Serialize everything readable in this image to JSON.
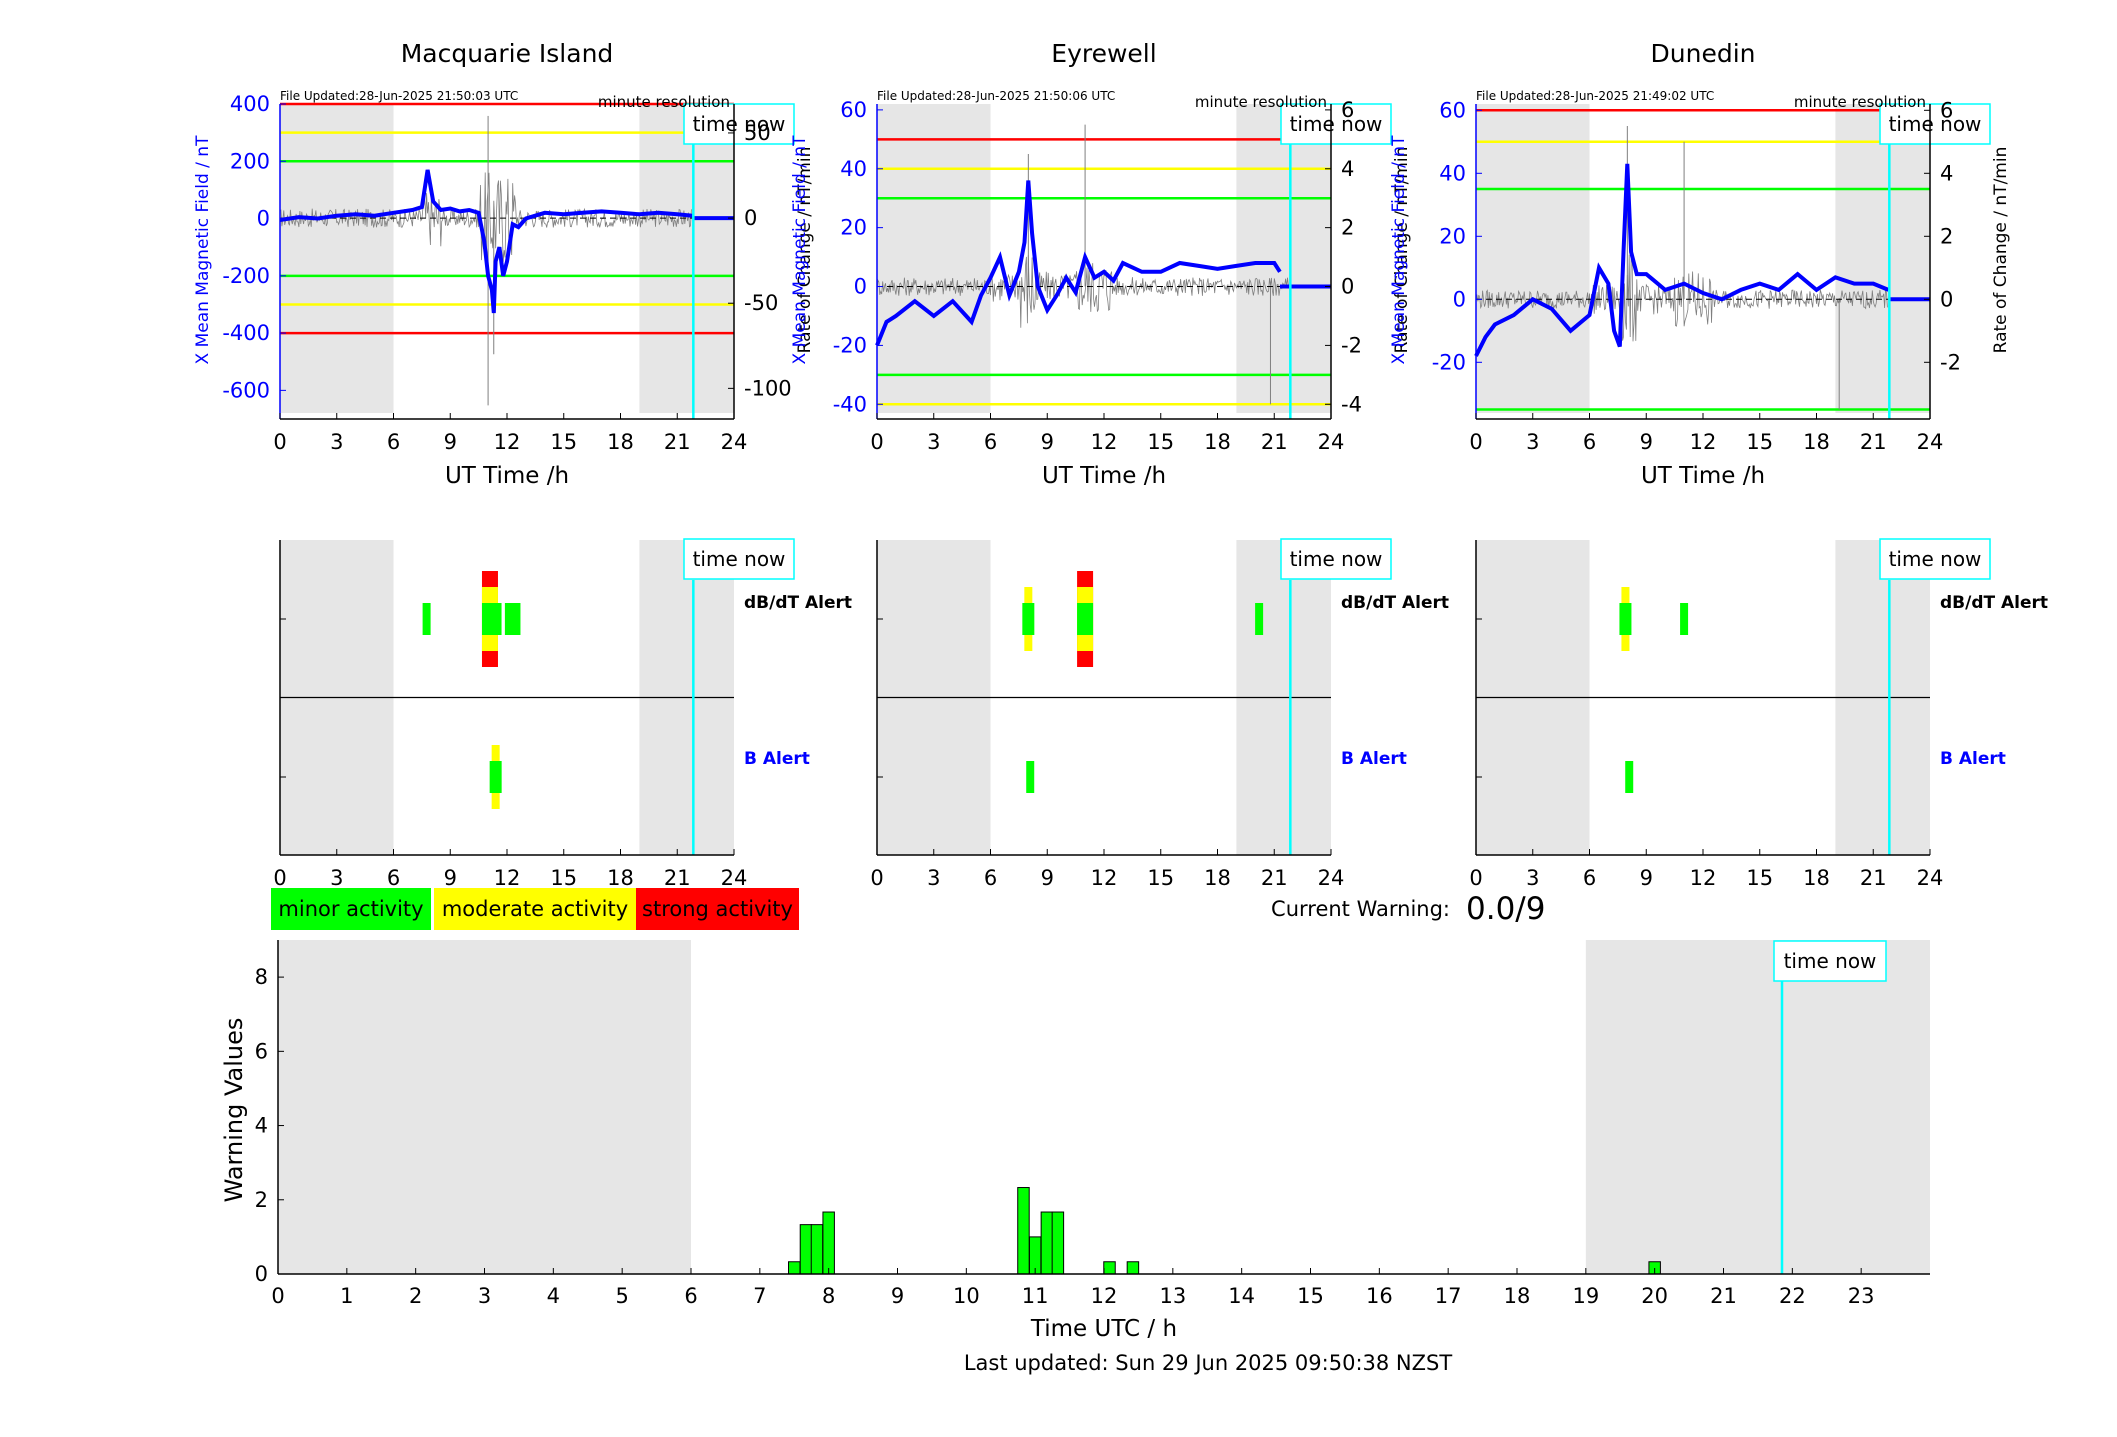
{
  "page": {
    "last_updated": "Last updated: Sun 29 Jun 2025 09:50:38 NZST"
  },
  "colors": {
    "minor": "#00ff00",
    "moderate": "#ffff00",
    "strong": "#ff0000",
    "night_shade": "#e6e6e6",
    "time_now": "#00ffff",
    "field": "#0000ff",
    "rate": "#7f7f7f"
  },
  "common": {
    "time_now_label": "time now",
    "resolution_label": "minute resolution",
    "xlabel": "UT Time /h",
    "ylabel_right": "Rate of Change / nT/min",
    "ylabel_left": "X Mean Magnetic Field / nT",
    "alert_db_label": "dB/dT Alert",
    "alert_b_label": "B Alert",
    "time_now_h": 21.85,
    "night_bands": [
      [
        0,
        6
      ],
      [
        19,
        24
      ]
    ],
    "xticks": [
      0,
      3,
      6,
      9,
      12,
      15,
      18,
      21,
      24
    ]
  },
  "legend": {
    "minor": "minor activity",
    "moderate": "moderate activity",
    "strong": "strong activity"
  },
  "current_warning": {
    "label": "Current Warning:",
    "value": "0.0/9"
  },
  "stations": [
    {
      "name": "Macquarie Island",
      "file_updated": "File Updated:28-Jun-2025 21:50:03 UTC",
      "left_ylim": [
        -700,
        400
      ],
      "left_ticks": [
        -600,
        -400,
        -200,
        0,
        200,
        400
      ],
      "right_ylim": [
        -118,
        67
      ],
      "right_ticks": [
        -100,
        -50,
        0,
        50
      ],
      "thresholds": {
        "green": [
          200,
          -200
        ],
        "yellow": [
          300,
          -300
        ],
        "red": [
          400,
          -400
        ]
      }
    },
    {
      "name": "Eyrewell",
      "file_updated": "File Updated:28-Jun-2025 21:50:06 UTC",
      "left_ylim": [
        -45,
        62
      ],
      "left_ticks": [
        -40,
        -20,
        0,
        20,
        40,
        60
      ],
      "right_ylim": [
        -4.5,
        6.2
      ],
      "right_ticks": [
        -4,
        -2,
        0,
        2,
        4,
        6
      ],
      "thresholds": {
        "green": [
          30,
          -30
        ],
        "yellow": [
          40,
          -40
        ],
        "red": [
          50
        ]
      }
    },
    {
      "name": "Dunedin",
      "file_updated": "File Updated:28-Jun-2025 21:49:02 UTC",
      "left_ylim": [
        -38,
        62
      ],
      "left_ticks": [
        -20,
        0,
        20,
        40,
        60
      ],
      "right_ylim": [
        -3.8,
        6.2
      ],
      "right_ticks": [
        -2,
        0,
        2,
        4,
        6
      ],
      "thresholds": {
        "green": [
          35,
          -35
        ],
        "yellow": [
          50
        ],
        "red": [
          60
        ]
      }
    }
  ],
  "alerts": [
    {
      "db": [
        {
          "t": 7.75,
          "level": "minor"
        },
        {
          "t": 11.1,
          "level": "strong"
        },
        {
          "t": 11.5,
          "level": "minor"
        },
        {
          "t": 12.1,
          "level": "minor"
        },
        {
          "t": 12.5,
          "level": "minor"
        }
      ],
      "b": [
        {
          "t": 11.4,
          "level": "moderate"
        }
      ]
    },
    {
      "db": [
        {
          "t": 8.0,
          "level": "moderate"
        },
        {
          "t": 11.0,
          "level": "strong"
        },
        {
          "t": 20.2,
          "level": "minor"
        }
      ],
      "b": [
        {
          "t": 8.1,
          "level": "minor"
        }
      ]
    },
    {
      "db": [
        {
          "t": 7.9,
          "level": "moderate"
        },
        {
          "t": 11.0,
          "level": "minor"
        }
      ],
      "b": [
        {
          "t": 8.1,
          "level": "minor"
        }
      ]
    }
  ],
  "chart_data": [
    {
      "type": "line",
      "title": "Macquarie Island",
      "xlabel": "UT Time /h",
      "ylabel": "X Mean Magnetic Field / nT",
      "ylabel_right": "Rate of Change / nT/min",
      "xlim": [
        0,
        24
      ],
      "ylim": [
        -700,
        400
      ],
      "series": [
        {
          "x": [
            0,
            1,
            2,
            3,
            4,
            5,
            6,
            7,
            7.5,
            7.8,
            8.1,
            8.5,
            9,
            9.5,
            10,
            10.5,
            10.8,
            11,
            11.2,
            11.3,
            11.4,
            11.6,
            11.8,
            12,
            12.3,
            12.6,
            13,
            14,
            15,
            16,
            17,
            18,
            19,
            20,
            21,
            21.8
          ],
          "values": [
            -5,
            5,
            0,
            10,
            15,
            10,
            20,
            30,
            40,
            170,
            60,
            30,
            35,
            25,
            30,
            20,
            -80,
            -200,
            -250,
            -330,
            -150,
            -100,
            -200,
            -150,
            -20,
            -30,
            0,
            20,
            15,
            20,
            25,
            20,
            15,
            20,
            15,
            10
          ]
        }
      ]
    },
    {
      "type": "line",
      "title": "Eyrewell",
      "xlabel": "UT Time /h",
      "ylabel": "X Mean Magnetic Field / nT",
      "ylabel_right": "Rate of Change / nT/min",
      "xlim": [
        0,
        24
      ],
      "ylim": [
        -45,
        62
      ],
      "series": [
        {
          "x": [
            0,
            0.5,
            1,
            2,
            3,
            4,
            5,
            5.5,
            6,
            6.5,
            7,
            7.5,
            7.8,
            8.0,
            8.2,
            8.5,
            9,
            9.5,
            10,
            10.5,
            11,
            11.5,
            12,
            12.5,
            13,
            14,
            15,
            16,
            17,
            18,
            19,
            20,
            21,
            21.3
          ],
          "values": [
            -20,
            -12,
            -10,
            -5,
            -10,
            -5,
            -12,
            -3,
            3,
            10,
            -3,
            5,
            15,
            36,
            18,
            0,
            -8,
            -3,
            3,
            -2,
            10,
            3,
            5,
            2,
            8,
            5,
            5,
            8,
            7,
            6,
            7,
            8,
            8,
            5
          ]
        }
      ]
    },
    {
      "type": "line",
      "title": "Dunedin",
      "xlabel": "UT Time /h",
      "ylabel": "X Mean Magnetic Field / nT",
      "ylabel_right": "Rate of Change / nT/min",
      "xlim": [
        0,
        24
      ],
      "ylim": [
        -38,
        62
      ],
      "series": [
        {
          "x": [
            0,
            0.5,
            1,
            2,
            3,
            4,
            5,
            6,
            6.5,
            7,
            7.3,
            7.6,
            7.8,
            8.0,
            8.2,
            8.5,
            9,
            10,
            11,
            12,
            13,
            14,
            15,
            16,
            17,
            18,
            19,
            20,
            21,
            21.8
          ],
          "values": [
            -18,
            -12,
            -8,
            -5,
            0,
            -3,
            -10,
            -5,
            10,
            5,
            -10,
            -15,
            15,
            43,
            15,
            8,
            8,
            3,
            5,
            2,
            0,
            3,
            5,
            3,
            8,
            3,
            7,
            5,
            5,
            3
          ]
        }
      ]
    },
    {
      "type": "bar",
      "title": "",
      "xlabel": "Time UTC / h",
      "ylabel": "Warning Values",
      "xlim": [
        0,
        24
      ],
      "ylim": [
        0,
        9
      ],
      "x": [
        7.5,
        7.67,
        7.83,
        8.0,
        10.83,
        11.0,
        11.17,
        11.33,
        12.08,
        12.42,
        20.0
      ],
      "values": [
        0.33,
        1.33,
        1.33,
        1.67,
        2.33,
        1.0,
        1.67,
        1.67,
        0.33,
        0.33,
        0.33
      ]
    }
  ],
  "bottom": {
    "xlabel": "Time UTC / h",
    "ylabel": "Warning Values",
    "xticks": [
      0,
      1,
      2,
      3,
      4,
      5,
      6,
      7,
      8,
      9,
      10,
      11,
      12,
      13,
      14,
      15,
      16,
      17,
      18,
      19,
      20,
      21,
      22,
      23
    ],
    "yticks": [
      0,
      2,
      4,
      6,
      8
    ],
    "night_bands": [
      [
        0,
        6
      ],
      [
        19,
        24
      ]
    ]
  }
}
